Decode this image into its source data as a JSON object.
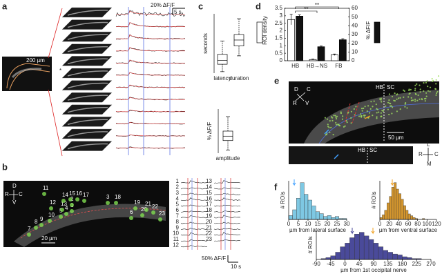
{
  "figure": {
    "panel_labels": [
      "a",
      "b",
      "c",
      "d",
      "e",
      "f"
    ],
    "a": {
      "scale_bar": "200 µm",
      "marker": "*",
      "trace_scale_y": "20% ΔF/F",
      "trace_scale_x": "5 s"
    },
    "b": {
      "axes": [
        "D",
        "V",
        "R",
        "C"
      ],
      "scale_bar": "20 µm",
      "rois": [
        "1",
        "2",
        "3",
        "4",
        "5",
        "6",
        "7",
        "8",
        "9",
        "10",
        "11",
        "12",
        "13",
        "14",
        "15",
        "16",
        "17",
        "18",
        "19",
        "20",
        "21",
        "22",
        "23"
      ],
      "trace_labels": [
        "1",
        "2",
        "3",
        "4",
        "5",
        "6",
        "7",
        "8",
        "9",
        "10",
        "11",
        "12",
        "13",
        "14",
        "15",
        "16",
        "17",
        "18",
        "19",
        "20",
        "21",
        "22",
        "23"
      ],
      "trace_scale_y": "50% ΔF/F",
      "trace_scale_x": "10 s"
    },
    "e": {
      "axes": [
        "D",
        "C",
        "R",
        "V"
      ],
      "regions": [
        "HB",
        "SC"
      ],
      "scale_bar": "50 µm",
      "lower_regions": [
        "HB",
        "SC"
      ],
      "lower_axes": [
        "L",
        "R",
        "C",
        "M"
      ]
    }
  },
  "chart_data": [
    {
      "type": "box",
      "ylabel": "seconds",
      "categories": [
        "latency",
        "duration"
      ],
      "stats": [
        [
          0.3,
          1.8,
          2.6,
          3.8,
          6.5
        ],
        [
          3.5,
          5.5,
          6.7,
          7.8,
          11
        ]
      ],
      "ylim": [
        0,
        12
      ]
    },
    {
      "type": "box",
      "ylabel": "% ΔF/F",
      "categories": [
        "amplitude"
      ],
      "stats": [
        [
          5,
          20,
          27,
          35,
          58
        ]
      ],
      "ylim": [
        0,
        70
      ]
    },
    {
      "type": "bar",
      "categories": [
        "HB",
        "HB→NS",
        "FB"
      ],
      "series": [
        {
          "name": "ROI density",
          "color": "#ffffff",
          "values": [
            2.75,
            0.08,
            0.4
          ],
          "errors": [
            0.35,
            0.03,
            0.05
          ]
        },
        {
          "name": "% ΔF/F",
          "color": "#111111",
          "values": [
            51,
            16,
            24
          ],
          "errors": [
            1.5,
            0.8,
            1.2
          ],
          "axis": "y2"
        }
      ],
      "ylim": [
        0,
        3.5
      ],
      "yticks": [
        0,
        0.5,
        1,
        1.5,
        2,
        2.5,
        3,
        3.5
      ],
      "y2lim": [
        0,
        60
      ],
      "y2ticks": [
        0,
        10,
        20,
        30,
        40,
        50,
        60
      ],
      "annotations": [
        "**",
        "**"
      ]
    },
    {
      "type": "histogram",
      "xlabel": "µm from lateral surface",
      "ylabel": "# ROIs",
      "color": "#7ec8e3",
      "bins": [
        0,
        2,
        4,
        6,
        8,
        10,
        12,
        14,
        16,
        18,
        20,
        22,
        24,
        26,
        28,
        30
      ],
      "values": [
        4,
        10,
        22,
        38,
        26,
        20,
        14,
        8,
        6,
        3,
        4,
        2,
        3,
        1,
        1
      ],
      "xlim": [
        0,
        30
      ],
      "xticks": [
        0,
        5,
        10,
        15,
        20,
        25,
        30
      ],
      "ylim": [
        0,
        40
      ]
    },
    {
      "type": "histogram",
      "xlabel": "µm from ventral surface",
      "ylabel": "# ROIs",
      "color": "#d4962e",
      "bins": [
        0,
        5,
        10,
        15,
        20,
        25,
        30,
        35,
        40,
        45,
        50,
        55,
        60,
        65,
        70,
        75,
        80,
        85,
        90,
        95,
        100,
        105,
        110,
        115,
        120
      ],
      "values": [
        2,
        5,
        10,
        18,
        25,
        35,
        40,
        33,
        28,
        22,
        15,
        10,
        6,
        4,
        2,
        1,
        0,
        0,
        1,
        0,
        0,
        0,
        0,
        0
      ],
      "xlim": [
        0,
        120
      ],
      "xticks": [
        0,
        20,
        40,
        60,
        80,
        100,
        120
      ],
      "ylim": [
        0,
        42
      ]
    },
    {
      "type": "histogram",
      "xlabel": "µm from 1st occipital nerve",
      "ylabel": "# ROIs",
      "color": "#4a4a9a",
      "bins": [
        -90,
        -75,
        -60,
        -45,
        -30,
        -15,
        0,
        15,
        30,
        45,
        60,
        75,
        90,
        105,
        120,
        135,
        150,
        165,
        180,
        195,
        210,
        225,
        240,
        255,
        270
      ],
      "values": [
        0,
        1,
        2,
        4,
        8,
        14,
        18,
        24,
        28,
        30,
        26,
        22,
        18,
        14,
        10,
        8,
        6,
        5,
        3,
        2,
        1,
        1,
        0,
        0
      ],
      "xlim": [
        -90,
        270
      ],
      "xticks": [
        -90,
        -45,
        0,
        45,
        90,
        135,
        180,
        225,
        270
      ],
      "ylim": [
        0,
        32
      ]
    }
  ]
}
